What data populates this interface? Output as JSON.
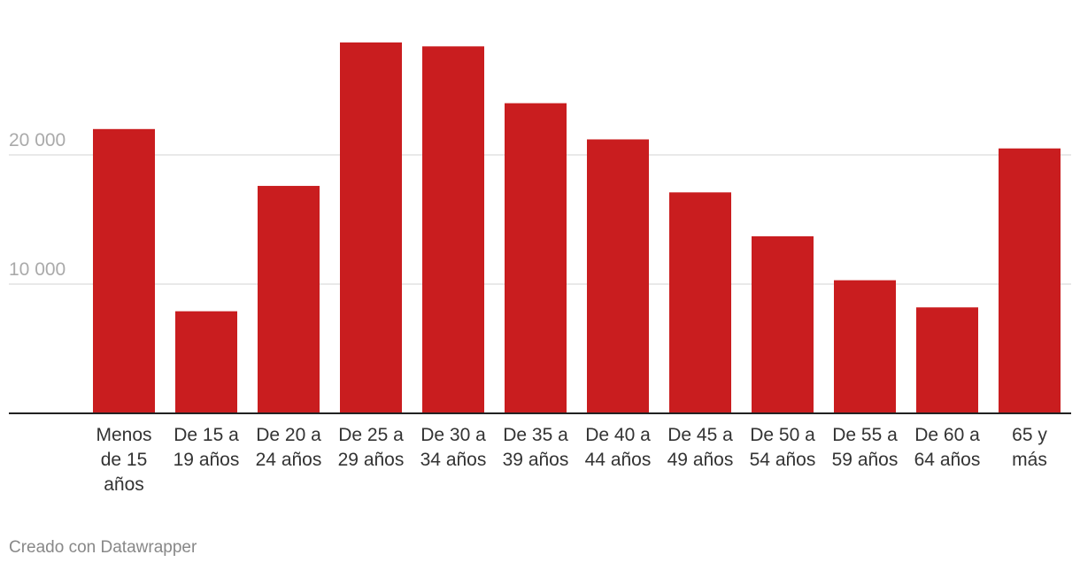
{
  "chart_data": {
    "type": "bar",
    "categories": [
      "Menos de 15 años",
      "De 15 a 19 años",
      "De 20 a 24 años",
      "De 25 a 29 años",
      "De 30 a 34 años",
      "De 35 a 39 años",
      "De 40 a 44 años",
      "De 45 a 49 años",
      "De 50 a 54 años",
      "De 55 a 59 años",
      "De 60 a 64 años",
      "65 y más"
    ],
    "values": [
      22000,
      7900,
      17600,
      28700,
      28400,
      24000,
      21200,
      17100,
      13700,
      10300,
      8200,
      20500
    ],
    "color": "#c91d1f",
    "ylim": [
      0,
      29000
    ],
    "yticks": [
      {
        "value": 10000,
        "label": "10 000"
      },
      {
        "value": 20000,
        "label": "20 000"
      }
    ],
    "grid": true
  },
  "footer": "Creado con Datawrapper"
}
